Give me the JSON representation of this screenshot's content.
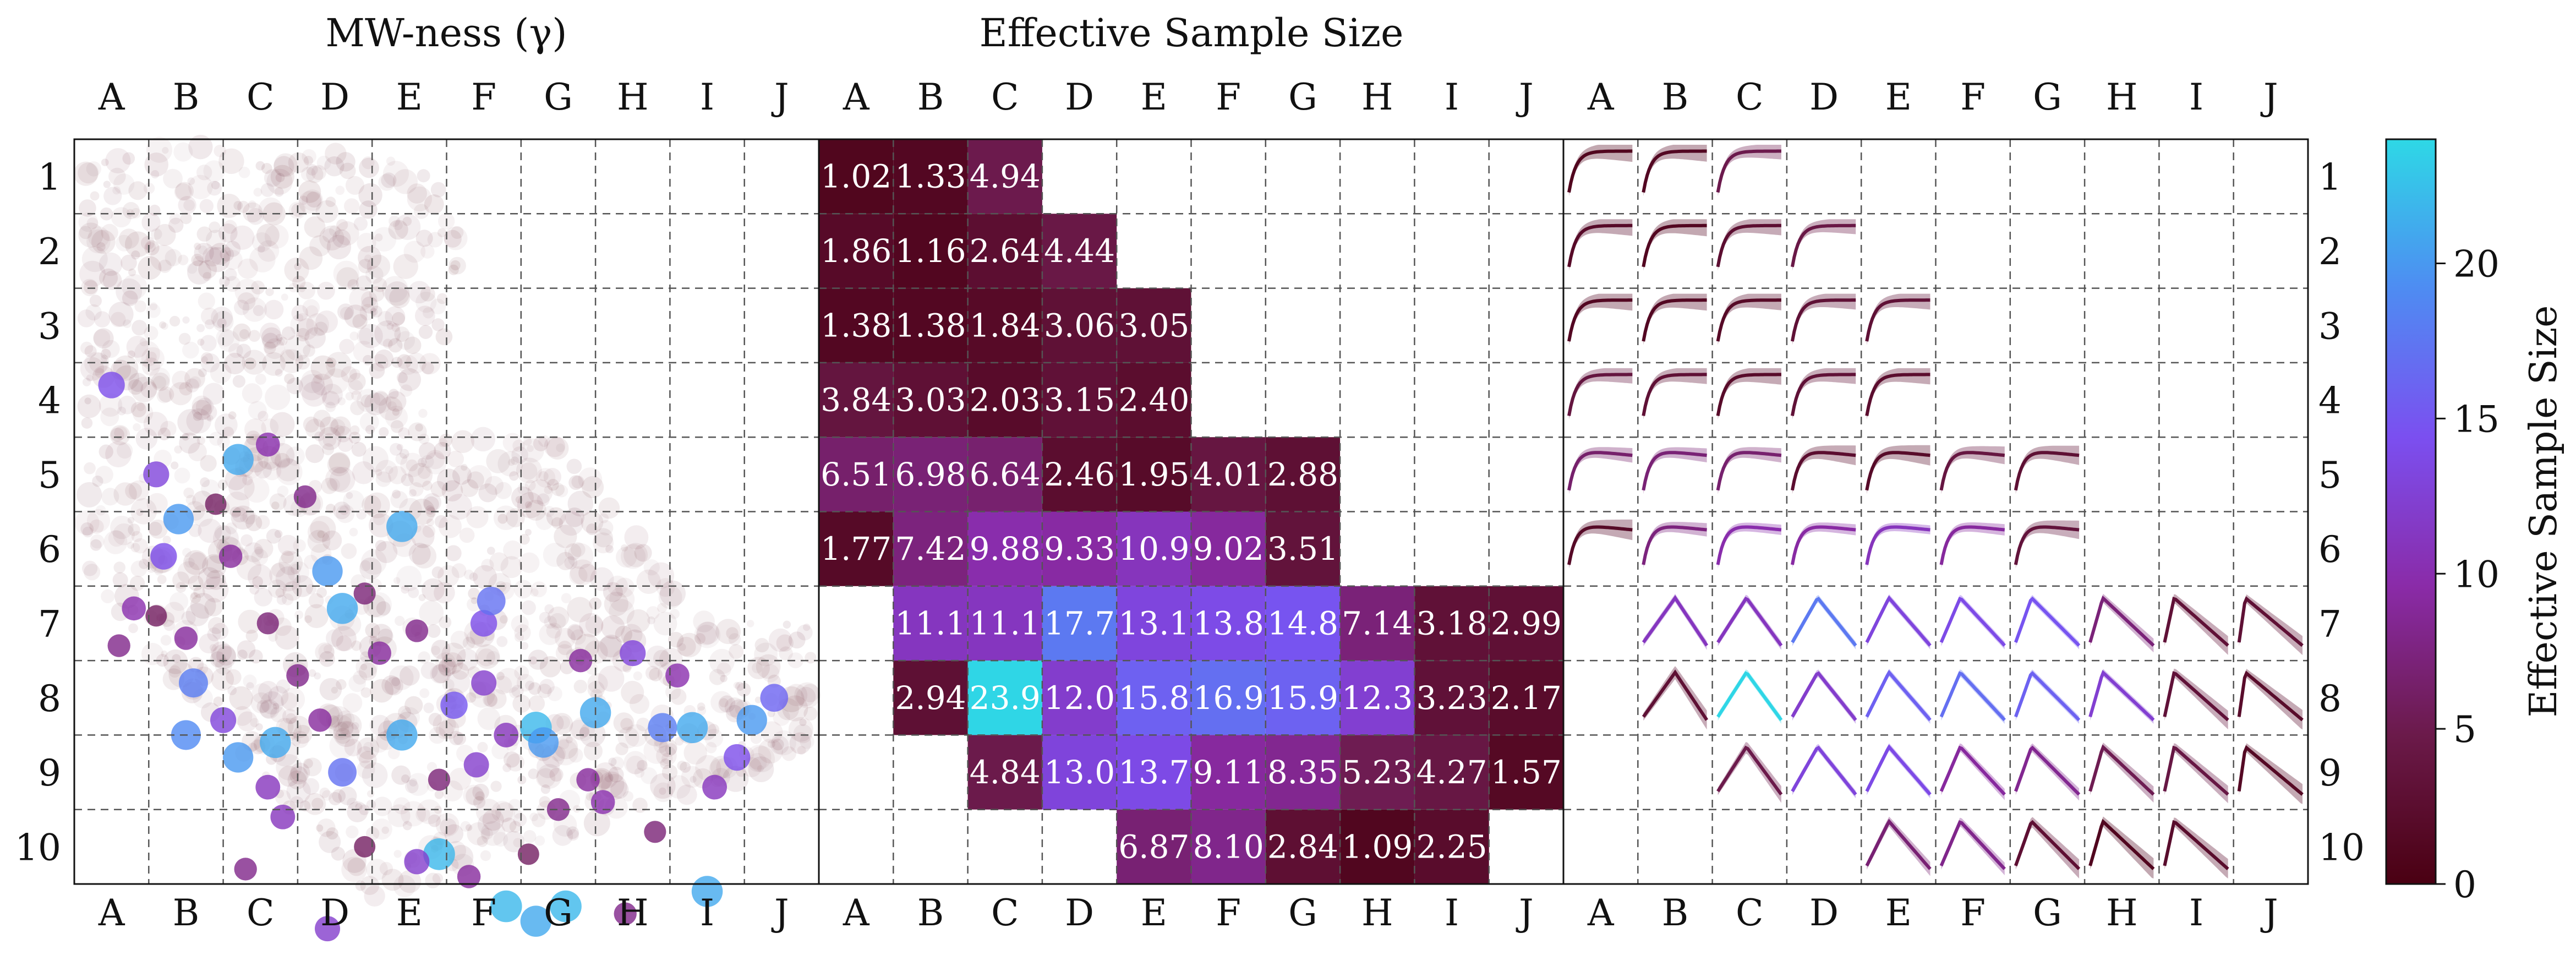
{
  "colors": {
    "colormap": [
      "#4a0012",
      "#6b1a4a",
      "#8a2ba8",
      "#7b4ff0",
      "#4e8cf2",
      "#2ed8e6"
    ],
    "scatter_background": "#6b2a3a",
    "grid": "#555555"
  },
  "labels": {
    "left_title": "MW-ness (γ)",
    "middle_title": "Effective Sample Size",
    "colorbar_label": "Effective Sample Size"
  },
  "chart_data": [
    {
      "type": "scatter",
      "panel": "left",
      "title": "MW-ness (γ)",
      "columns": [
        "A",
        "B",
        "C",
        "D",
        "E",
        "F",
        "G",
        "H",
        "I",
        "J"
      ],
      "rows": [
        "1",
        "2",
        "3",
        "4",
        "5",
        "6",
        "7",
        "8",
        "9",
        "10"
      ],
      "grid": true,
      "highlighted_points": [
        [
          0.5,
          3.3,
          14
        ],
        [
          1.1,
          4.5,
          13
        ],
        [
          1.4,
          5.1,
          20
        ],
        [
          2.2,
          4.3,
          21
        ],
        [
          1.2,
          5.6,
          14
        ],
        [
          2.6,
          4.1,
          10
        ],
        [
          3.4,
          5.8,
          20
        ],
        [
          3.6,
          6.3,
          21
        ],
        [
          4.4,
          5.2,
          21
        ],
        [
          5.5,
          6.5,
          14
        ],
        [
          5.6,
          6.2,
          17
        ],
        [
          1.6,
          7.3,
          18
        ],
        [
          1.5,
          8.0,
          19
        ],
        [
          2.2,
          8.3,
          20
        ],
        [
          2.7,
          8.1,
          21
        ],
        [
          3.6,
          8.5,
          17
        ],
        [
          4.4,
          8.0,
          21
        ],
        [
          5.1,
          7.6,
          15
        ],
        [
          6.2,
          7.9,
          22
        ],
        [
          6.3,
          8.1,
          20
        ],
        [
          7.0,
          7.7,
          21
        ],
        [
          7.9,
          7.9,
          18
        ],
        [
          8.3,
          7.9,
          21
        ],
        [
          9.1,
          7.8,
          20
        ],
        [
          9.4,
          7.5,
          16
        ],
        [
          8.9,
          8.3,
          14
        ],
        [
          4.9,
          9.6,
          22
        ],
        [
          5.8,
          10.3,
          22
        ],
        [
          6.2,
          10.5,
          21
        ],
        [
          6.6,
          10.3,
          22
        ],
        [
          8.5,
          10.1,
          21
        ],
        [
          3.4,
          10.6,
          12
        ],
        [
          4.6,
          9.7,
          12
        ],
        [
          7.4,
          10.4,
          8
        ],
        [
          7.1,
          8.9,
          10
        ],
        [
          2.8,
          9.1,
          11
        ],
        [
          3.0,
          7.2,
          8
        ],
        [
          2.6,
          8.7,
          11
        ],
        [
          4.1,
          6.9,
          9
        ],
        [
          5.5,
          7.3,
          12
        ],
        [
          6.8,
          7.0,
          9
        ],
        [
          7.5,
          6.9,
          13
        ],
        [
          8.1,
          7.2,
          10
        ],
        [
          8.6,
          8.7,
          11
        ],
        [
          1.5,
          6.7,
          9
        ],
        [
          2.6,
          6.5,
          7
        ],
        [
          0.8,
          6.3,
          10
        ],
        [
          4.9,
          8.6,
          7
        ],
        [
          5.4,
          8.4,
          12
        ],
        [
          6.9,
          8.6,
          9
        ],
        [
          2.0,
          7.8,
          13
        ],
        [
          3.3,
          7.8,
          9
        ],
        [
          5.8,
          8.0,
          11
        ],
        [
          6.5,
          9.0,
          8
        ],
        [
          7.8,
          9.3,
          7
        ],
        [
          3.9,
          9.5,
          6
        ],
        [
          2.3,
          9.8,
          8
        ],
        [
          5.3,
          9.9,
          9
        ],
        [
          6.1,
          9.6,
          6
        ],
        [
          3.1,
          4.8,
          8
        ],
        [
          1.9,
          4.9,
          6
        ],
        [
          2.1,
          5.6,
          9
        ],
        [
          3.9,
          6.1,
          7
        ],
        [
          4.6,
          6.6,
          8
        ],
        [
          1.1,
          6.4,
          6
        ],
        [
          0.6,
          6.8,
          8
        ]
      ]
    },
    {
      "type": "heatmap",
      "panel": "middle",
      "title": "Effective Sample Size",
      "columns": [
        "A",
        "B",
        "C",
        "D",
        "E",
        "F",
        "G",
        "H",
        "I",
        "J"
      ],
      "rows": [
        "1",
        "2",
        "3",
        "4",
        "5",
        "6",
        "7",
        "8",
        "9",
        "10"
      ],
      "values": [
        [
          "1.02",
          "1.33",
          "4.94",
          null,
          null,
          null,
          null,
          null,
          null,
          null
        ],
        [
          "1.86",
          "1.16",
          "2.64",
          "4.44",
          null,
          null,
          null,
          null,
          null,
          null
        ],
        [
          "1.38",
          "1.38",
          "1.84",
          "3.06",
          "3.05",
          null,
          null,
          null,
          null,
          null
        ],
        [
          "3.84",
          "3.03",
          "2.03",
          "3.15",
          "2.40",
          null,
          null,
          null,
          null,
          null
        ],
        [
          "6.51",
          "6.98",
          "6.64",
          "2.46",
          "1.95",
          "4.01",
          "2.88",
          null,
          null,
          null
        ],
        [
          "1.77",
          "7.42",
          "9.88",
          "9.33",
          "10.9",
          "9.02",
          "3.51",
          null,
          null,
          null
        ],
        [
          null,
          "11.1",
          "11.1",
          "17.7",
          "13.1",
          "13.8",
          "14.8",
          "7.14",
          "3.18",
          "2.99"
        ],
        [
          null,
          "2.94",
          "23.9",
          "12.0",
          "15.8",
          "16.9",
          "15.9",
          "12.3",
          "3.23",
          "2.17"
        ],
        [
          null,
          null,
          "4.84",
          "13.0",
          "13.7",
          "9.11",
          "8.35",
          "5.23",
          "4.27",
          "1.57"
        ],
        [
          null,
          null,
          null,
          null,
          "6.87",
          "8.10",
          "2.84",
          "1.09",
          "2.25",
          null
        ]
      ]
    },
    {
      "type": "line",
      "panel": "right",
      "description": "small-multiple curve per occupied cell, colored by effective sample size",
      "columns": [
        "A",
        "B",
        "C",
        "D",
        "E",
        "F",
        "G",
        "H",
        "I",
        "J"
      ],
      "rows": [
        "1",
        "2",
        "3",
        "4",
        "5",
        "6",
        "7",
        "8",
        "9",
        "10"
      ],
      "grid": true
    },
    {
      "type": "colorbar",
      "label": "Effective Sample Size",
      "range": [
        0,
        24
      ],
      "ticks": [
        "0",
        "5",
        "10",
        "15",
        "20"
      ]
    }
  ]
}
